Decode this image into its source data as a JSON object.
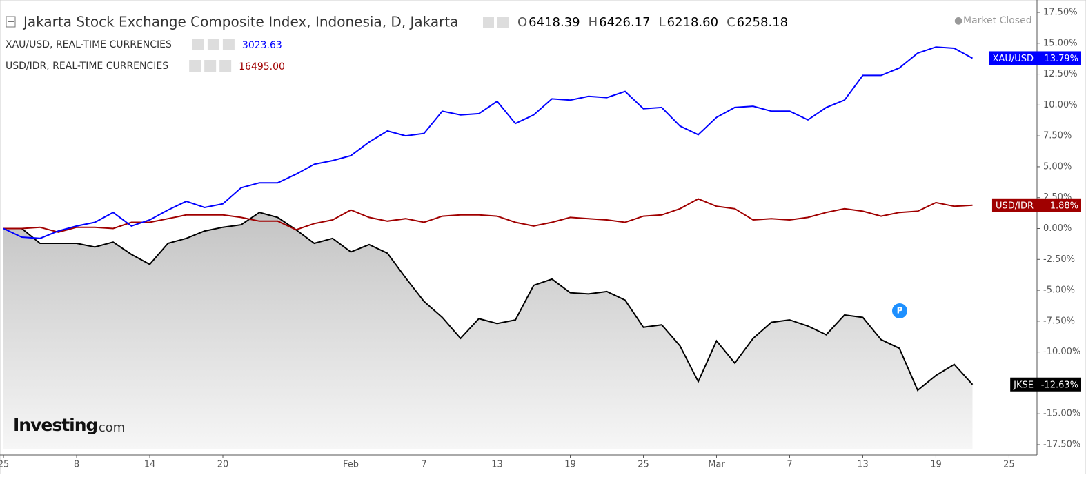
{
  "header": {
    "title": "Jakarta Stock Exchange Composite Index, Indonesia, D, Jakarta",
    "ohlc": [
      {
        "key": "O",
        "value": "6418.39"
      },
      {
        "key": "H",
        "value": "6426.17"
      },
      {
        "key": "L",
        "value": "6218.60"
      },
      {
        "key": "C",
        "value": "6258.18"
      }
    ],
    "status": "Market Closed",
    "legend": [
      {
        "name": "XAU/USD, REAL-TIME CURRENCIES",
        "price": "3023.63",
        "color": "#0000ff"
      },
      {
        "name": "USD/IDR, REAL-TIME CURRENCIES",
        "price": "16495.00",
        "color": "#a00000"
      }
    ]
  },
  "logo": {
    "name": "Investing",
    "suffix": ".com"
  },
  "badge": "P",
  "chart_data": {
    "type": "line",
    "series": [
      {
        "name": "JKSE",
        "color": "#000000",
        "area": true,
        "last_label": "-12.63%",
        "values": [
          0,
          0,
          -1.2,
          -1.2,
          -1.2,
          -1.5,
          -1.1,
          -2.1,
          -2.9,
          -1.2,
          -0.8,
          -0.2,
          0.1,
          0.3,
          1.3,
          0.9,
          -0.1,
          -1.2,
          -0.8,
          -1.9,
          -1.3,
          -2.0,
          -4.0,
          -5.9,
          -7.2,
          -8.9,
          -7.3,
          -7.7,
          -7.4,
          -4.6,
          -4.1,
          -5.2,
          -5.3,
          -5.1,
          -5.8,
          -8.0,
          -7.8,
          -9.5,
          -12.4,
          -9.1,
          -10.9,
          -8.9,
          -7.6,
          -7.4,
          -7.9,
          -8.6,
          -7.0,
          -7.2,
          -9.0,
          -9.7,
          -13.1,
          -11.9,
          -11.0,
          -12.63
        ]
      },
      {
        "name": "USD/IDR",
        "color": "#a00000",
        "area": false,
        "last_label": "1.88%",
        "values": [
          0,
          0,
          0.1,
          -0.3,
          0.1,
          0.1,
          0,
          0.5,
          0.5,
          0.8,
          1.1,
          1.1,
          1.1,
          0.9,
          0.6,
          0.6,
          -0.1,
          0.4,
          0.7,
          1.5,
          0.9,
          0.6,
          0.8,
          0.5,
          1.0,
          1.1,
          1.1,
          1.0,
          0.5,
          0.2,
          0.5,
          0.9,
          0.8,
          0.7,
          0.5,
          1.0,
          1.1,
          1.6,
          2.4,
          1.8,
          1.6,
          0.7,
          0.8,
          0.7,
          0.9,
          1.3,
          1.6,
          1.4,
          1.0,
          1.3,
          1.4,
          2.1,
          1.8,
          1.88
        ]
      },
      {
        "name": "XAU/USD",
        "color": "#0000ff",
        "area": false,
        "last_label": "13.79%",
        "values": [
          0,
          -0.7,
          -0.8,
          -0.2,
          0.2,
          0.5,
          1.3,
          0.2,
          0.7,
          1.5,
          2.2,
          1.7,
          2.0,
          3.3,
          3.7,
          3.7,
          4.4,
          5.2,
          5.5,
          5.9,
          7.0,
          7.9,
          7.5,
          7.7,
          9.5,
          9.2,
          9.3,
          10.3,
          8.5,
          9.2,
          10.5,
          10.4,
          10.7,
          10.6,
          11.1,
          9.7,
          9.8,
          8.3,
          7.6,
          9.0,
          9.8,
          9.9,
          9.5,
          9.5,
          8.8,
          9.8,
          10.4,
          12.4,
          12.4,
          13.0,
          14.2,
          14.7,
          14.6,
          13.79
        ]
      }
    ],
    "xlim": [
      -0.19,
      56.53
    ],
    "xticks": [
      {
        "value": 0,
        "label": "25"
      },
      {
        "value": 4,
        "label": "8"
      },
      {
        "value": 8,
        "label": "14"
      },
      {
        "value": 12,
        "label": "20"
      },
      {
        "value": 19,
        "label": "Feb"
      },
      {
        "value": 23,
        "label": "7"
      },
      {
        "value": 27,
        "label": "13"
      },
      {
        "value": 31,
        "label": "19"
      },
      {
        "value": 35,
        "label": "25"
      },
      {
        "value": 39,
        "label": "Mar"
      },
      {
        "value": 43,
        "label": "7"
      },
      {
        "value": 47,
        "label": "13"
      },
      {
        "value": 51,
        "label": "19"
      },
      {
        "value": 55,
        "label": "25"
      }
    ],
    "ylim": [
      -17.5,
      17.5
    ],
    "yticks": [
      {
        "value": 17.5,
        "label": "17.50%"
      },
      {
        "value": 15,
        "label": "15.00%"
      },
      {
        "value": 12.5,
        "label": "12.50%"
      },
      {
        "value": 10,
        "label": "10.00%"
      },
      {
        "value": 7.5,
        "label": "7.50%"
      },
      {
        "value": 5,
        "label": "5.00%"
      },
      {
        "value": 2.5,
        "label": "2.50%"
      },
      {
        "value": 0,
        "label": "0.00%"
      },
      {
        "value": -2.5,
        "label": "-2.50%"
      },
      {
        "value": -5,
        "label": "-5.00%"
      },
      {
        "value": -7.5,
        "label": "-7.50%"
      },
      {
        "value": -10,
        "label": "-10.00%"
      },
      {
        "value": -12.5,
        "label": "-12.50%"
      },
      {
        "value": -15,
        "label": "-15.00%"
      },
      {
        "value": -17.5,
        "label": "-17.50%"
      }
    ]
  }
}
